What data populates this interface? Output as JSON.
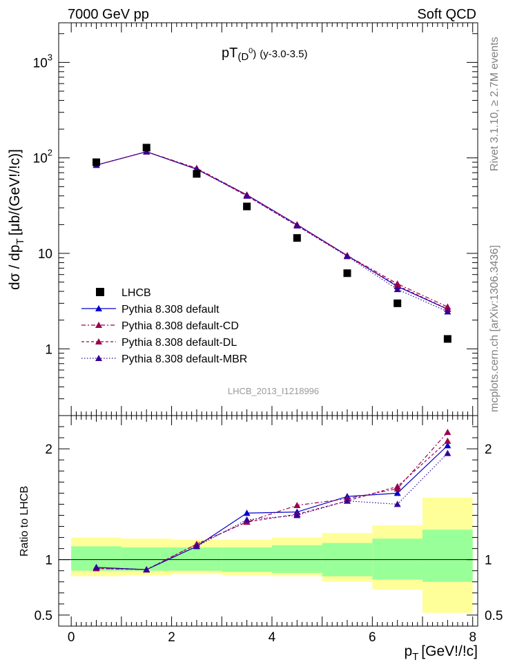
{
  "header": {
    "left": "7000 GeV pp",
    "right": "Soft QCD",
    "side_top": "Rivet 3.1.10, ≥ 2.7M events",
    "side_bottom": "mcplots.cern.ch [arXiv:1306.3436]",
    "watermark": "LHCB_2013_I1218996"
  },
  "chart_data": [
    {
      "type": "scatter",
      "title_main": "pT",
      "title_sub": "(D",
      "title_sup": "0",
      "title_close": ")",
      "title_rest": "(y-3.0-3.5)",
      "ylabel_main": "dσ / dp",
      "ylabel_sub": "T",
      "ylabel_rest": "[μb/(GeV!/!c)]",
      "yscale": "log",
      "ylim": [
        0.2,
        2600
      ],
      "xlim": [
        -0.25,
        8.1
      ],
      "y_ticks": [
        {
          "v": 1,
          "base": "1",
          "exp": ""
        },
        {
          "v": 10,
          "base": "10",
          "exp": ""
        },
        {
          "v": 100,
          "base": "10",
          "exp": "2"
        },
        {
          "v": 1000,
          "base": "10",
          "exp": "3"
        }
      ],
      "x": [
        0.5,
        1.5,
        2.5,
        3.5,
        4.5,
        5.5,
        6.5,
        7.5
      ],
      "series": [
        {
          "name": "LHCB",
          "color": "#000000",
          "style": "square",
          "values": [
            90,
            128,
            68,
            31,
            14.5,
            6.2,
            3.0,
            1.27
          ]
        },
        {
          "name": "Pythia 8.308 default",
          "color": "#0000cc",
          "style": "solid",
          "values": [
            84,
            116,
            76,
            41,
            20,
            9.5,
            4.5,
            2.6
          ]
        },
        {
          "name": "Pythia 8.308 default-CD",
          "color": "#99004d",
          "style": "dashdot",
          "values": [
            84,
            116,
            78,
            41,
            20,
            9.5,
            4.8,
            2.75
          ]
        },
        {
          "name": "Pythia 8.308 default-DL",
          "color": "#99004d",
          "style": "dashed",
          "values": [
            84,
            116,
            77,
            40,
            19.5,
            9.4,
            4.6,
            2.62
          ]
        },
        {
          "name": "Pythia 8.308 default-MBR",
          "color": "#330099",
          "style": "dotted",
          "values": [
            84,
            116,
            76,
            40,
            19.5,
            9.3,
            4.2,
            2.45
          ]
        }
      ],
      "legend": "bottom-left"
    },
    {
      "type": "line",
      "ylabel": "Ratio to LHCB",
      "xlabel_main": "p",
      "xlabel_sub": "T",
      "xlabel_rest": "[GeV!/!c]",
      "ylim": [
        0.4,
        2.3
      ],
      "x_ticks": [
        0,
        2,
        4,
        6,
        8
      ],
      "y_ticks": [
        {
          "v": 0.5,
          "label": "0.5"
        },
        {
          "v": 1,
          "label": "1"
        },
        {
          "v": 2,
          "label": "2"
        }
      ],
      "bands": [
        {
          "x0": 0,
          "x1": 1,
          "y_in": [
            0.9,
            1.12
          ],
          "y_out": [
            0.85,
            1.2
          ]
        },
        {
          "x0": 1,
          "x1": 2,
          "y_in": [
            0.9,
            1.11
          ],
          "y_out": [
            0.86,
            1.19
          ]
        },
        {
          "x0": 2,
          "x1": 3,
          "y_in": [
            0.9,
            1.11
          ],
          "y_out": [
            0.87,
            1.18
          ]
        },
        {
          "x0": 3,
          "x1": 4,
          "y_in": [
            0.89,
            1.11
          ],
          "y_out": [
            0.86,
            1.18
          ]
        },
        {
          "x0": 4,
          "x1": 5,
          "y_in": [
            0.88,
            1.13
          ],
          "y_out": [
            0.85,
            1.2
          ]
        },
        {
          "x0": 5,
          "x1": 6,
          "y_in": [
            0.85,
            1.15
          ],
          "y_out": [
            0.8,
            1.24
          ]
        },
        {
          "x0": 6,
          "x1": 7,
          "y_in": [
            0.82,
            1.19
          ],
          "y_out": [
            0.73,
            1.31
          ]
        },
        {
          "x0": 7,
          "x1": 8,
          "y_in": [
            0.8,
            1.27
          ],
          "y_out": [
            0.52,
            1.56
          ]
        }
      ],
      "series": [
        {
          "name": "Pythia 8.308 default",
          "values": [
            0.93,
            0.91,
            1.12,
            1.42,
            1.43,
            1.57,
            1.6,
            2.03
          ]
        },
        {
          "name": "Pythia 8.308 default-CD",
          "values": [
            0.92,
            0.91,
            1.14,
            1.34,
            1.49,
            1.55,
            1.64,
            2.15
          ]
        },
        {
          "name": "Pythia 8.308 default-DL",
          "values": [
            0.92,
            0.91,
            1.14,
            1.34,
            1.41,
            1.53,
            1.66,
            2.07
          ]
        },
        {
          "name": "Pythia 8.308 default-MBR",
          "values": [
            0.93,
            0.91,
            1.12,
            1.36,
            1.4,
            1.53,
            1.5,
            1.96
          ]
        }
      ],
      "colors": {
        "band_inner": "#99ff99",
        "band_outer": "#ffff99"
      }
    }
  ]
}
